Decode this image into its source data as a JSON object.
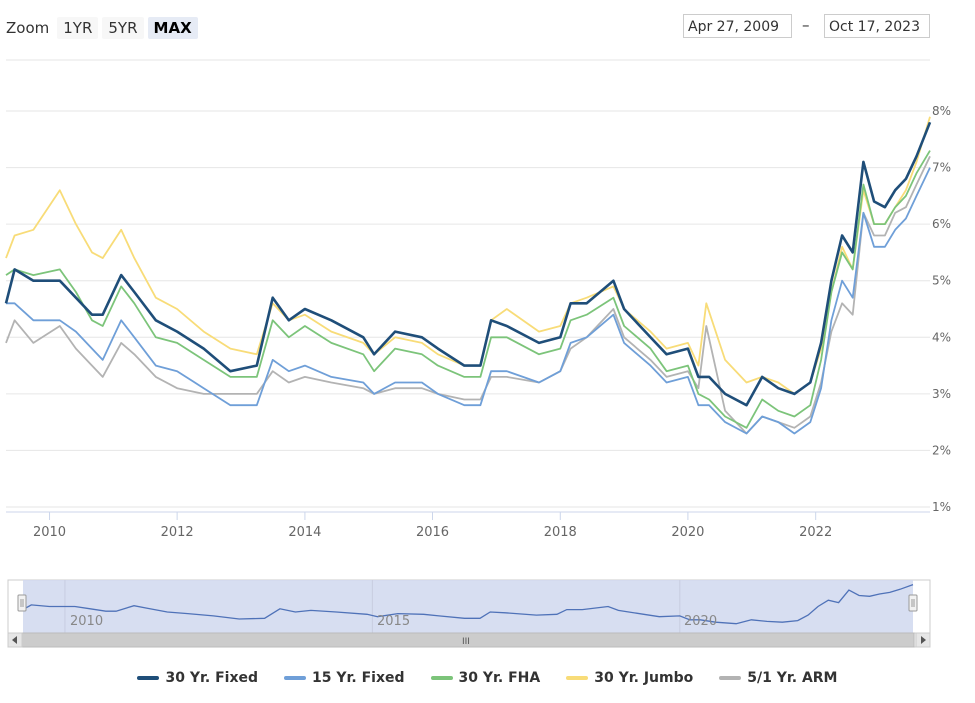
{
  "zoom": {
    "label": "Zoom",
    "buttons": [
      "1YR",
      "5YR",
      "MAX"
    ],
    "active": "MAX"
  },
  "range": {
    "from": "Apr 27, 2009",
    "to": "Oct 17, 2023",
    "dash": "–"
  },
  "navigator": {
    "year_labels": [
      "2010",
      "2015",
      "2020"
    ],
    "scroll_grip": "III"
  },
  "chart_data": {
    "type": "line",
    "xlim": [
      "2009-04-27",
      "2023-10-17"
    ],
    "ylim": [
      1,
      8
    ],
    "y_ticks": [
      "1%",
      "2%",
      "3%",
      "4%",
      "5%",
      "6%",
      "7%",
      "8%"
    ],
    "x_ticks": [
      "2010",
      "2012",
      "2014",
      "2016",
      "2018",
      "2020",
      "2022"
    ],
    "grid": true,
    "legend_position": "bottom",
    "series": [
      {
        "name": "30 Yr. Fixed",
        "color": "#1f4e79",
        "points": [
          [
            "2009-04-27",
            4.6
          ],
          [
            "2009-06-15",
            5.2
          ],
          [
            "2009-10-01",
            5.0
          ],
          [
            "2010-03-01",
            5.0
          ],
          [
            "2010-06-01",
            4.7
          ],
          [
            "2010-09-01",
            4.4
          ],
          [
            "2010-11-01",
            4.4
          ],
          [
            "2011-02-15",
            5.1
          ],
          [
            "2011-05-01",
            4.8
          ],
          [
            "2011-09-01",
            4.3
          ],
          [
            "2012-01-01",
            4.1
          ],
          [
            "2012-06-01",
            3.8
          ],
          [
            "2012-11-01",
            3.4
          ],
          [
            "2013-04-01",
            3.5
          ],
          [
            "2013-07-01",
            4.7
          ],
          [
            "2013-10-01",
            4.3
          ],
          [
            "2014-01-01",
            4.5
          ],
          [
            "2014-06-01",
            4.3
          ],
          [
            "2014-12-01",
            4.0
          ],
          [
            "2015-02-01",
            3.7
          ],
          [
            "2015-06-01",
            4.1
          ],
          [
            "2015-11-01",
            4.0
          ],
          [
            "2016-02-01",
            3.8
          ],
          [
            "2016-07-01",
            3.5
          ],
          [
            "2016-10-01",
            3.5
          ],
          [
            "2016-12-01",
            4.3
          ],
          [
            "2017-03-01",
            4.2
          ],
          [
            "2017-09-01",
            3.9
          ],
          [
            "2018-01-01",
            4.0
          ],
          [
            "2018-03-01",
            4.6
          ],
          [
            "2018-06-01",
            4.6
          ],
          [
            "2018-11-01",
            5.0
          ],
          [
            "2019-01-01",
            4.5
          ],
          [
            "2019-06-01",
            4.0
          ],
          [
            "2019-09-01",
            3.7
          ],
          [
            "2020-01-01",
            3.8
          ],
          [
            "2020-03-01",
            3.3
          ],
          [
            "2020-05-01",
            3.3
          ],
          [
            "2020-08-01",
            3.0
          ],
          [
            "2020-12-01",
            2.8
          ],
          [
            "2021-03-01",
            3.3
          ],
          [
            "2021-06-01",
            3.1
          ],
          [
            "2021-09-01",
            3.0
          ],
          [
            "2021-12-01",
            3.2
          ],
          [
            "2022-02-01",
            3.9
          ],
          [
            "2022-04-01",
            5.0
          ],
          [
            "2022-06-01",
            5.8
          ],
          [
            "2022-08-01",
            5.5
          ],
          [
            "2022-10-01",
            7.1
          ],
          [
            "2022-12-01",
            6.4
          ],
          [
            "2023-02-01",
            6.3
          ],
          [
            "2023-04-01",
            6.6
          ],
          [
            "2023-06-01",
            6.8
          ],
          [
            "2023-08-01",
            7.2
          ],
          [
            "2023-10-17",
            7.8
          ]
        ]
      },
      {
        "name": "15 Yr. Fixed",
        "color": "#6f9fd8",
        "points": [
          [
            "2009-04-27",
            4.6
          ],
          [
            "2009-06-15",
            4.6
          ],
          [
            "2009-10-01",
            4.3
          ],
          [
            "2010-03-01",
            4.3
          ],
          [
            "2010-06-01",
            4.1
          ],
          [
            "2010-09-01",
            3.8
          ],
          [
            "2010-11-01",
            3.6
          ],
          [
            "2011-02-15",
            4.3
          ],
          [
            "2011-05-01",
            4.0
          ],
          [
            "2011-09-01",
            3.5
          ],
          [
            "2012-01-01",
            3.4
          ],
          [
            "2012-06-01",
            3.1
          ],
          [
            "2012-11-01",
            2.8
          ],
          [
            "2013-04-01",
            2.8
          ],
          [
            "2013-07-01",
            3.6
          ],
          [
            "2013-10-01",
            3.4
          ],
          [
            "2014-01-01",
            3.5
          ],
          [
            "2014-06-01",
            3.3
          ],
          [
            "2014-12-01",
            3.2
          ],
          [
            "2015-02-01",
            3.0
          ],
          [
            "2015-06-01",
            3.2
          ],
          [
            "2015-11-01",
            3.2
          ],
          [
            "2016-02-01",
            3.0
          ],
          [
            "2016-07-01",
            2.8
          ],
          [
            "2016-10-01",
            2.8
          ],
          [
            "2016-12-01",
            3.4
          ],
          [
            "2017-03-01",
            3.4
          ],
          [
            "2017-09-01",
            3.2
          ],
          [
            "2018-01-01",
            3.4
          ],
          [
            "2018-03-01",
            3.9
          ],
          [
            "2018-06-01",
            4.0
          ],
          [
            "2018-11-01",
            4.4
          ],
          [
            "2019-01-01",
            3.9
          ],
          [
            "2019-06-01",
            3.5
          ],
          [
            "2019-09-01",
            3.2
          ],
          [
            "2020-01-01",
            3.3
          ],
          [
            "2020-03-01",
            2.8
          ],
          [
            "2020-05-01",
            2.8
          ],
          [
            "2020-08-01",
            2.5
          ],
          [
            "2020-12-01",
            2.3
          ],
          [
            "2021-03-01",
            2.6
          ],
          [
            "2021-06-01",
            2.5
          ],
          [
            "2021-09-01",
            2.3
          ],
          [
            "2021-12-01",
            2.5
          ],
          [
            "2022-02-01",
            3.1
          ],
          [
            "2022-04-01",
            4.3
          ],
          [
            "2022-06-01",
            5.0
          ],
          [
            "2022-08-01",
            4.7
          ],
          [
            "2022-10-01",
            6.2
          ],
          [
            "2022-12-01",
            5.6
          ],
          [
            "2023-02-01",
            5.6
          ],
          [
            "2023-04-01",
            5.9
          ],
          [
            "2023-06-01",
            6.1
          ],
          [
            "2023-08-01",
            6.5
          ],
          [
            "2023-10-17",
            7.0
          ]
        ]
      },
      {
        "name": "30 Yr. FHA",
        "color": "#7cc47a",
        "points": [
          [
            "2009-04-27",
            5.1
          ],
          [
            "2009-06-15",
            5.2
          ],
          [
            "2009-10-01",
            5.1
          ],
          [
            "2010-03-01",
            5.2
          ],
          [
            "2010-06-01",
            4.8
          ],
          [
            "2010-09-01",
            4.3
          ],
          [
            "2010-11-01",
            4.2
          ],
          [
            "2011-02-15",
            4.9
          ],
          [
            "2011-05-01",
            4.6
          ],
          [
            "2011-09-01",
            4.0
          ],
          [
            "2012-01-01",
            3.9
          ],
          [
            "2012-06-01",
            3.6
          ],
          [
            "2012-11-01",
            3.3
          ],
          [
            "2013-04-01",
            3.3
          ],
          [
            "2013-07-01",
            4.3
          ],
          [
            "2013-10-01",
            4.0
          ],
          [
            "2014-01-01",
            4.2
          ],
          [
            "2014-06-01",
            3.9
          ],
          [
            "2014-12-01",
            3.7
          ],
          [
            "2015-02-01",
            3.4
          ],
          [
            "2015-06-01",
            3.8
          ],
          [
            "2015-11-01",
            3.7
          ],
          [
            "2016-02-01",
            3.5
          ],
          [
            "2016-07-01",
            3.3
          ],
          [
            "2016-10-01",
            3.3
          ],
          [
            "2016-12-01",
            4.0
          ],
          [
            "2017-03-01",
            4.0
          ],
          [
            "2017-09-01",
            3.7
          ],
          [
            "2018-01-01",
            3.8
          ],
          [
            "2018-03-01",
            4.3
          ],
          [
            "2018-06-01",
            4.4
          ],
          [
            "2018-11-01",
            4.7
          ],
          [
            "2019-01-01",
            4.2
          ],
          [
            "2019-06-01",
            3.8
          ],
          [
            "2019-09-01",
            3.4
          ],
          [
            "2020-01-01",
            3.5
          ],
          [
            "2020-03-01",
            3.0
          ],
          [
            "2020-05-01",
            2.9
          ],
          [
            "2020-08-01",
            2.6
          ],
          [
            "2020-12-01",
            2.4
          ],
          [
            "2021-03-01",
            2.9
          ],
          [
            "2021-06-01",
            2.7
          ],
          [
            "2021-09-01",
            2.6
          ],
          [
            "2021-12-01",
            2.8
          ],
          [
            "2022-02-01",
            3.6
          ],
          [
            "2022-04-01",
            4.8
          ],
          [
            "2022-06-01",
            5.5
          ],
          [
            "2022-08-01",
            5.2
          ],
          [
            "2022-10-01",
            6.7
          ],
          [
            "2022-12-01",
            6.0
          ],
          [
            "2023-02-01",
            6.0
          ],
          [
            "2023-04-01",
            6.3
          ],
          [
            "2023-06-01",
            6.5
          ],
          [
            "2023-08-01",
            6.9
          ],
          [
            "2023-10-17",
            7.3
          ]
        ]
      },
      {
        "name": "30 Yr. Jumbo",
        "color": "#f8dc78",
        "points": [
          [
            "2009-04-27",
            5.4
          ],
          [
            "2009-06-15",
            5.8
          ],
          [
            "2009-10-01",
            5.9
          ],
          [
            "2010-03-01",
            6.6
          ],
          [
            "2010-06-01",
            6.0
          ],
          [
            "2010-09-01",
            5.5
          ],
          [
            "2010-11-01",
            5.4
          ],
          [
            "2011-02-15",
            5.9
          ],
          [
            "2011-05-01",
            5.4
          ],
          [
            "2011-09-01",
            4.7
          ],
          [
            "2012-01-01",
            4.5
          ],
          [
            "2012-06-01",
            4.1
          ],
          [
            "2012-11-01",
            3.8
          ],
          [
            "2013-04-01",
            3.7
          ],
          [
            "2013-07-01",
            4.6
          ],
          [
            "2013-10-01",
            4.3
          ],
          [
            "2014-01-01",
            4.4
          ],
          [
            "2014-06-01",
            4.1
          ],
          [
            "2014-12-01",
            3.9
          ],
          [
            "2015-02-01",
            3.7
          ],
          [
            "2015-06-01",
            4.0
          ],
          [
            "2015-11-01",
            3.9
          ],
          [
            "2016-02-01",
            3.7
          ],
          [
            "2016-07-01",
            3.5
          ],
          [
            "2016-10-01",
            3.5
          ],
          [
            "2016-12-01",
            4.3
          ],
          [
            "2017-03-01",
            4.5
          ],
          [
            "2017-09-01",
            4.1
          ],
          [
            "2018-01-01",
            4.2
          ],
          [
            "2018-03-01",
            4.6
          ],
          [
            "2018-06-01",
            4.7
          ],
          [
            "2018-11-01",
            4.9
          ],
          [
            "2019-01-01",
            4.5
          ],
          [
            "2019-06-01",
            4.1
          ],
          [
            "2019-09-01",
            3.8
          ],
          [
            "2020-01-01",
            3.9
          ],
          [
            "2020-03-01",
            3.5
          ],
          [
            "2020-04-15",
            4.6
          ],
          [
            "2020-08-01",
            3.6
          ],
          [
            "2020-12-01",
            3.2
          ],
          [
            "2021-03-01",
            3.3
          ],
          [
            "2021-06-01",
            3.2
          ],
          [
            "2021-09-01",
            3.0
          ],
          [
            "2021-12-01",
            3.2
          ],
          [
            "2022-02-01",
            3.8
          ],
          [
            "2022-04-01",
            4.8
          ],
          [
            "2022-06-01",
            5.6
          ],
          [
            "2022-08-01",
            5.2
          ],
          [
            "2022-10-01",
            6.6
          ],
          [
            "2022-12-01",
            6.0
          ],
          [
            "2023-02-01",
            6.0
          ],
          [
            "2023-04-01",
            6.3
          ],
          [
            "2023-06-01",
            6.6
          ],
          [
            "2023-08-01",
            7.1
          ],
          [
            "2023-10-17",
            7.9
          ]
        ]
      },
      {
        "name": "5/1 Yr. ARM",
        "color": "#b3b3b3",
        "points": [
          [
            "2009-04-27",
            3.9
          ],
          [
            "2009-06-15",
            4.3
          ],
          [
            "2009-10-01",
            3.9
          ],
          [
            "2010-03-01",
            4.2
          ],
          [
            "2010-06-01",
            3.8
          ],
          [
            "2010-09-01",
            3.5
          ],
          [
            "2010-11-01",
            3.3
          ],
          [
            "2011-02-15",
            3.9
          ],
          [
            "2011-05-01",
            3.7
          ],
          [
            "2011-09-01",
            3.3
          ],
          [
            "2012-01-01",
            3.1
          ],
          [
            "2012-06-01",
            3.0
          ],
          [
            "2012-11-01",
            3.0
          ],
          [
            "2013-04-01",
            3.0
          ],
          [
            "2013-07-01",
            3.4
          ],
          [
            "2013-10-01",
            3.2
          ],
          [
            "2014-01-01",
            3.3
          ],
          [
            "2014-06-01",
            3.2
          ],
          [
            "2014-12-01",
            3.1
          ],
          [
            "2015-02-01",
            3.0
          ],
          [
            "2015-06-01",
            3.1
          ],
          [
            "2015-11-01",
            3.1
          ],
          [
            "2016-02-01",
            3.0
          ],
          [
            "2016-07-01",
            2.9
          ],
          [
            "2016-10-01",
            2.9
          ],
          [
            "2016-12-01",
            3.3
          ],
          [
            "2017-03-01",
            3.3
          ],
          [
            "2017-09-01",
            3.2
          ],
          [
            "2018-01-01",
            3.4
          ],
          [
            "2018-03-01",
            3.8
          ],
          [
            "2018-06-01",
            4.0
          ],
          [
            "2018-11-01",
            4.5
          ],
          [
            "2019-01-01",
            4.0
          ],
          [
            "2019-06-01",
            3.6
          ],
          [
            "2019-09-01",
            3.3
          ],
          [
            "2020-01-01",
            3.4
          ],
          [
            "2020-03-01",
            3.1
          ],
          [
            "2020-04-15",
            4.2
          ],
          [
            "2020-08-01",
            2.7
          ],
          [
            "2020-12-01",
            2.3
          ],
          [
            "2021-03-01",
            2.6
          ],
          [
            "2021-06-01",
            2.5
          ],
          [
            "2021-09-01",
            2.4
          ],
          [
            "2021-12-01",
            2.6
          ],
          [
            "2022-02-01",
            3.2
          ],
          [
            "2022-04-01",
            4.1
          ],
          [
            "2022-06-01",
            4.6
          ],
          [
            "2022-08-01",
            4.4
          ],
          [
            "2022-10-01",
            6.2
          ],
          [
            "2022-12-01",
            5.8
          ],
          [
            "2023-02-01",
            5.8
          ],
          [
            "2023-04-01",
            6.2
          ],
          [
            "2023-06-01",
            6.3
          ],
          [
            "2023-08-01",
            6.7
          ],
          [
            "2023-10-17",
            7.2
          ]
        ]
      }
    ]
  }
}
